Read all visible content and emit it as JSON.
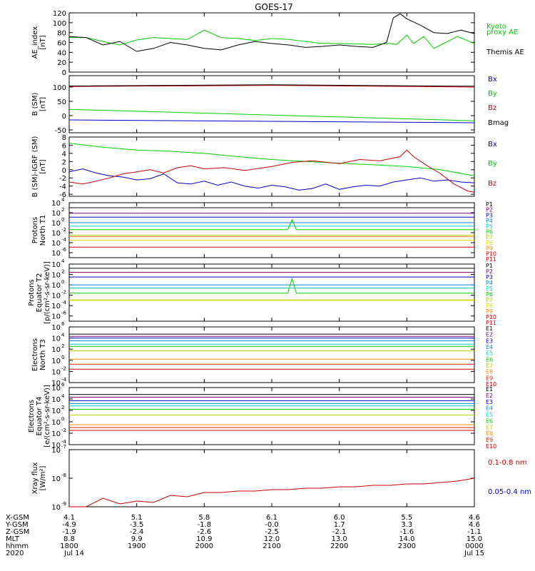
{
  "title": "GOES-17",
  "chart_data": [
    {
      "type": "line",
      "ylabel": [
        "AE_index",
        "[nT]"
      ],
      "ylim": [
        0,
        120
      ],
      "yticks": [
        "0",
        "20",
        "40",
        "60",
        "80",
        "100",
        "120"
      ],
      "legend_placement": "right",
      "series": [
        {
          "name": "Kyoto proxy AE",
          "color": "#00cc00",
          "x": [
            18.0,
            18.25,
            18.5,
            18.75,
            19.0,
            19.25,
            19.5,
            19.75,
            20.0,
            20.25,
            20.5,
            20.75,
            21.0,
            21.25,
            21.5,
            21.75,
            22.0,
            22.25,
            22.5,
            22.75,
            22.85,
            23.0,
            23.1,
            23.25,
            23.4,
            23.5,
            23.75,
            24.0
          ],
          "y": [
            70,
            70,
            62,
            55,
            65,
            70,
            68,
            66,
            85,
            70,
            68,
            64,
            68,
            66,
            62,
            58,
            58,
            57,
            56,
            58,
            56,
            75,
            58,
            72,
            48,
            55,
            72,
            58
          ]
        },
        {
          "name": "Themis AE",
          "color": "#000000",
          "x": [
            18.0,
            18.25,
            18.5,
            18.75,
            19.0,
            19.25,
            19.5,
            19.75,
            20.0,
            20.25,
            20.5,
            20.75,
            21.0,
            21.25,
            21.5,
            21.75,
            22.0,
            22.25,
            22.5,
            22.7,
            22.8,
            22.9,
            23.0,
            23.2,
            23.4,
            23.6,
            23.8,
            24.0
          ],
          "y": [
            72,
            70,
            55,
            62,
            42,
            48,
            60,
            55,
            48,
            45,
            55,
            62,
            58,
            55,
            50,
            52,
            55,
            52,
            50,
            60,
            110,
            118,
            108,
            95,
            80,
            78,
            85,
            78
          ]
        }
      ]
    },
    {
      "type": "line",
      "ylabel": [
        "B (SM)",
        "[nT]"
      ],
      "ylim": [
        -60,
        140
      ],
      "yticks": [
        "-50",
        "0",
        "50",
        "100"
      ],
      "legend_placement": "right",
      "series": [
        {
          "name": "Bx",
          "color": "#0000cc",
          "x": [
            18,
            24
          ],
          "y": [
            -15,
            -25
          ]
        },
        {
          "name": "By",
          "color": "#00cc00",
          "x": [
            18,
            24
          ],
          "y": [
            22,
            -18
          ]
        },
        {
          "name": "Bz",
          "color": "#cc0000",
          "x": [
            18,
            21,
            24
          ],
          "y": [
            102,
            106,
            100
          ]
        },
        {
          "name": "Bmag",
          "color": "#000000",
          "x": [
            18,
            21,
            24
          ],
          "y": [
            104,
            108,
            103
          ]
        }
      ]
    },
    {
      "type": "line",
      "ylabel": [
        "B (SM)-IGRF (SM)",
        "[nT]"
      ],
      "ylim": [
        -6.5,
        8
      ],
      "yticks": [
        "-6",
        "-4",
        "-2",
        "0",
        "2",
        "4",
        "6",
        "8"
      ],
      "legend_placement": "right",
      "series": [
        {
          "name": "Bx",
          "color": "#0000cc",
          "x": [
            18.0,
            18.2,
            18.4,
            18.6,
            18.8,
            19.0,
            19.2,
            19.4,
            19.6,
            19.8,
            20.0,
            20.2,
            20.4,
            20.6,
            20.8,
            21.0,
            21.2,
            21.4,
            21.6,
            21.8,
            22.0,
            22.2,
            22.4,
            22.6,
            22.8,
            23.0,
            23.2,
            23.4,
            23.6,
            23.8,
            24.0
          ],
          "y": [
            -0.5,
            0.2,
            -0.8,
            -1.5,
            -1.8,
            -2.5,
            -2.2,
            -1.0,
            -3.2,
            -3.5,
            -2.8,
            -3.8,
            -3.0,
            -4.0,
            -4.5,
            -3.8,
            -4.2,
            -5.0,
            -4.6,
            -3.5,
            -4.8,
            -4.2,
            -3.8,
            -4.0,
            -3.0,
            -2.5,
            -2.0,
            -2.8,
            -2.5,
            -3.0,
            -3.2
          ]
        },
        {
          "name": "By",
          "color": "#00cc00",
          "x": [
            18.0,
            18.5,
            19.0,
            19.5,
            20.0,
            20.5,
            21.0,
            21.5,
            22.0,
            22.5,
            23.0,
            23.5,
            24.0
          ],
          "y": [
            6.5,
            5.5,
            4.8,
            4.5,
            4.0,
            3.2,
            2.5,
            2.0,
            1.6,
            1.2,
            0.8,
            0.0,
            -1.5
          ]
        },
        {
          "name": "Bz",
          "color": "#cc0000",
          "x": [
            18.0,
            18.2,
            18.4,
            18.6,
            18.8,
            19.0,
            19.2,
            19.4,
            19.6,
            19.8,
            20.0,
            20.3,
            20.6,
            21.0,
            21.3,
            21.6,
            22.0,
            22.3,
            22.6,
            22.9,
            23.0,
            23.1,
            23.3,
            23.5,
            23.7,
            23.9,
            24.0
          ],
          "y": [
            -3.0,
            -3.5,
            -2.8,
            -2.0,
            -1.0,
            -0.5,
            0.0,
            -0.8,
            0.5,
            1.0,
            0.2,
            0.5,
            -0.2,
            0.8,
            1.8,
            2.2,
            1.5,
            2.5,
            2.2,
            3.2,
            4.8,
            3.2,
            1.0,
            -1.0,
            -3.5,
            -5.2,
            -5.5
          ]
        }
      ]
    },
    {
      "type": "line",
      "ylabel": [
        "Protons",
        "North T1"
      ],
      "ylim": [
        "1e-7",
        "1e4"
      ],
      "yscale": "log",
      "yticks": [
        "10^-6",
        "10^-4",
        "10^-2",
        "10^0",
        "10^2",
        "10^4"
      ],
      "legend_placement": "right",
      "series": [
        {
          "name": "P1",
          "color": "#000000",
          "level_log10": 3.0
        },
        {
          "name": "P2",
          "color": "#770077",
          "level_log10": 1.9
        },
        {
          "name": "P3",
          "color": "#0000cc",
          "level_log10": 1.1
        },
        {
          "name": "P4",
          "color": "#0088dd",
          "level_log10": 0.0
        },
        {
          "name": "P5",
          "color": "#00cccc",
          "level_log10": -0.7
        },
        {
          "name": "P6",
          "color": "#00cc00",
          "level_log10": -1.4,
          "spike_at": 21.3,
          "spike_log10": 0.6
        },
        {
          "name": "P7",
          "color": "#bbcc00",
          "level_log10": -2.5
        },
        {
          "name": "P8",
          "color": "#dddd00",
          "level_log10": -3.5
        },
        {
          "name": "P9",
          "color": "#ff8800",
          "level_log10": -2.8
        },
        {
          "name": "P10",
          "color": "#cc0000",
          "level_log10": -4.9
        },
        {
          "name": "P11",
          "color": "#cc0000",
          "level_log10": null
        }
      ]
    },
    {
      "type": "line",
      "ylabel": [
        "Protons",
        "Equator T2",
        "[p/(cm²-s-sr-keV)]"
      ],
      "ylim": [
        "1e-7",
        "1e4"
      ],
      "yscale": "log",
      "yticks": [
        "10^-6",
        "10^-4",
        "10^-2",
        "10^0",
        "10^2",
        "10^4"
      ],
      "legend_placement": "right",
      "series": [
        {
          "name": "P1",
          "color": "#000000",
          "level_log10": 3.2
        },
        {
          "name": "P2",
          "color": "#770077",
          "level_log10": 2.4
        },
        {
          "name": "P3",
          "color": "#0000cc",
          "level_log10": 1.5
        },
        {
          "name": "P4",
          "color": "#0088dd",
          "level_log10": 0.0
        },
        {
          "name": "P5",
          "color": "#00cccc",
          "level_log10": -0.6
        },
        {
          "name": "P6",
          "color": "#00cc00",
          "level_log10": -1.6,
          "spike_at": 21.3,
          "spike_log10": 1.2
        },
        {
          "name": "P7",
          "color": "#bbcc00",
          "level_log10": -2.9
        },
        {
          "name": "P8",
          "color": "#dddd00",
          "level_log10": -3.0
        },
        {
          "name": "P9",
          "color": "#ff8800",
          "level_log10": null
        },
        {
          "name": "P10",
          "color": "#cc0000",
          "level_log10": null
        },
        {
          "name": "P11",
          "color": "#cc0000",
          "level_log10": null
        }
      ]
    },
    {
      "type": "line",
      "ylabel": [
        "Electrons",
        "North T3"
      ],
      "ylim": [
        "1e-4",
        "1e6"
      ],
      "yscale": "log",
      "yticks": [
        "10^-4",
        "10^-2",
        "10^0",
        "10^2",
        "10^4",
        "10^6"
      ],
      "legend_placement": "right",
      "series": [
        {
          "name": "E1",
          "color": "#000000",
          "level_log10": 4.7
        },
        {
          "name": "E2",
          "color": "#770077",
          "level_log10": 4.3
        },
        {
          "name": "E3",
          "color": "#0000cc",
          "level_log10": 4.0
        },
        {
          "name": "E4",
          "color": "#0088dd",
          "level_log10": 3.5
        },
        {
          "name": "E5",
          "color": "#00cccc",
          "level_log10": 2.9
        },
        {
          "name": "E6",
          "color": "#00cc00",
          "level_log10": 2.5
        },
        {
          "name": "E7",
          "color": "#bbcc00",
          "level_log10": 1.7
        },
        {
          "name": "E8",
          "color": "#ff8800",
          "level_log10": 0.2
        },
        {
          "name": "E9",
          "color": "#dd2200",
          "level_log10": -0.7
        },
        {
          "name": "E10",
          "color": "#cc0000",
          "level_log10": -1.6
        }
      ]
    },
    {
      "type": "line",
      "ylabel": [
        "Electrons",
        "Equator T4",
        "[e/(cm²-s-sr-keV)]"
      ],
      "ylim": [
        "1e-4",
        "1e6"
      ],
      "yscale": "log",
      "yticks": [
        "10^-4",
        "10^-2",
        "10^0",
        "10^2",
        "10^4",
        "10^6"
      ],
      "legend_placement": "right",
      "series": [
        {
          "name": "E1",
          "color": "#000000",
          "level_log10": 4.8
        },
        {
          "name": "E2",
          "color": "#770077",
          "level_log10": 4.3
        },
        {
          "name": "E3",
          "color": "#0000cc",
          "level_log10": 3.7
        },
        {
          "name": "E4",
          "color": "#0088dd",
          "level_log10": 3.2
        },
        {
          "name": "E5",
          "color": "#00cccc",
          "level_log10": 2.8
        },
        {
          "name": "E6",
          "color": "#00cc00",
          "level_log10": 2.2
        },
        {
          "name": "E7",
          "color": "#bbcc00",
          "level_log10": 1.2
        },
        {
          "name": "E8",
          "color": "#ff8800",
          "level_log10": -0.5
        },
        {
          "name": "E9",
          "color": "#dd2200",
          "level_log10": -1.0
        },
        {
          "name": "E10",
          "color": "#cc0000",
          "level_log10": -1.5
        }
      ]
    },
    {
      "type": "line",
      "ylabel": [
        "Xray flux",
        "[W/m²]"
      ],
      "ylim": [
        "1e-9",
        "1e-7"
      ],
      "yscale": "log",
      "yticks": [
        "10^-9",
        "10^-8",
        "10^-7"
      ],
      "legend_placement": "right",
      "series": [
        {
          "name": "0.1-0.8 nm",
          "color": "#cc0000",
          "x": [
            18.0,
            18.25,
            18.5,
            18.75,
            19.0,
            19.25,
            19.5,
            19.75,
            20.0,
            20.25,
            20.5,
            20.75,
            21.0,
            21.25,
            21.5,
            21.75,
            22.0,
            22.25,
            22.5,
            22.75,
            23.0,
            23.25,
            23.5,
            23.75,
            24.0
          ],
          "y_log10": [
            -9.0,
            -9.0,
            -8.7,
            -8.9,
            -8.8,
            -8.85,
            -8.6,
            -8.65,
            -8.5,
            -8.5,
            -8.45,
            -8.45,
            -8.4,
            -8.4,
            -8.35,
            -8.35,
            -8.3,
            -8.3,
            -8.25,
            -8.25,
            -8.2,
            -8.2,
            -8.15,
            -8.1,
            -8.0
          ]
        },
        {
          "name": "0.05-0.4 nm",
          "color": "#0000cc"
        }
      ]
    }
  ],
  "xaxis": {
    "xlim": [
      18,
      24
    ],
    "rows": [
      {
        "label": "X-GSM",
        "values": [
          "4.1",
          "5.1",
          "5.8",
          "6.1",
          "6.0",
          "5.5",
          "4.6"
        ]
      },
      {
        "label": "Y-GSM",
        "values": [
          "-4.9",
          "-3.5",
          "-1.8",
          "-0.0",
          "1.7",
          "3.3",
          "4.6"
        ]
      },
      {
        "label": "Z-GSM",
        "values": [
          "-1.9",
          "-2.4",
          "-2.6",
          "-2.5",
          "-2.1",
          "-1.6",
          "-1.1"
        ]
      },
      {
        "label": "MLT",
        "values": [
          "8.8",
          "9.9",
          "10.9",
          "12.0",
          "13.0",
          "14.0",
          "15.0"
        ]
      },
      {
        "label": "hhmm",
        "values": [
          "1800",
          "1900",
          "2000",
          "2100",
          "2200",
          "2300",
          "0000"
        ]
      },
      {
        "label": "2020",
        "values": [
          "Jul 14",
          "",
          "",
          "",
          "",
          "",
          "Jul 15"
        ]
      }
    ]
  }
}
